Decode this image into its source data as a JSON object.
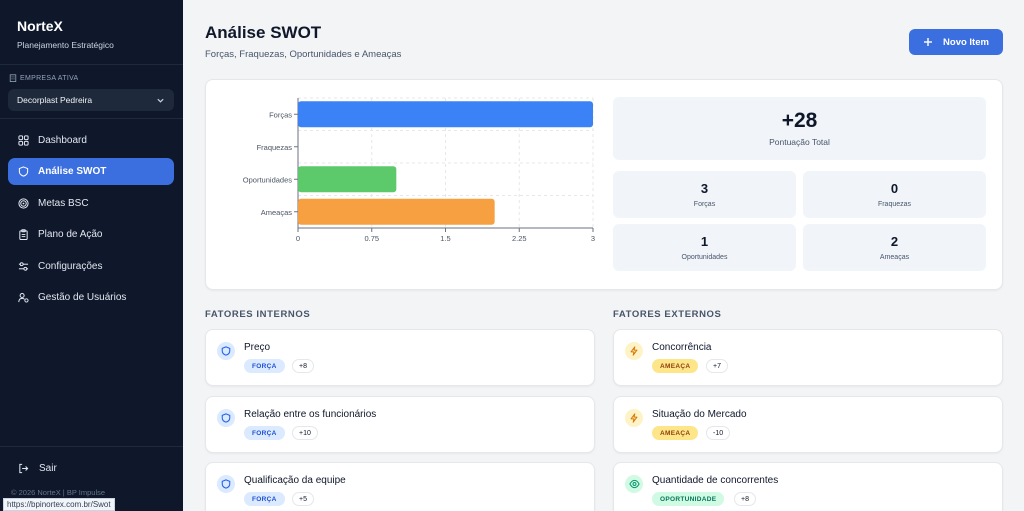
{
  "sidebar": {
    "brand": "NorteX",
    "brand_subtitle": "Planejamento Estratégico",
    "company_label": "EMPRESA ATIVA",
    "company_selected": "Decorplast Pedreira",
    "nav": [
      {
        "label": "Dashboard",
        "icon": "grid-icon"
      },
      {
        "label": "Análise SWOT",
        "icon": "shield-icon",
        "active": true
      },
      {
        "label": "Metas BSC",
        "icon": "target-icon"
      },
      {
        "label": "Plano de Ação",
        "icon": "clipboard-icon"
      },
      {
        "label": "Configurações",
        "icon": "sliders-icon"
      },
      {
        "label": "Gestão de Usuários",
        "icon": "users-gear-icon"
      }
    ],
    "logout_label": "Sair",
    "copyright": "© 2026 NorteX | BP Impulse"
  },
  "status_url": "https://bpinortex.com.br/Swot",
  "header": {
    "title": "Análise SWOT",
    "subtitle": "Forças, Fraquezas, Oportunidades e Ameaças",
    "new_button_label": "Novo Item"
  },
  "chart_data": {
    "type": "bar",
    "orientation": "horizontal",
    "categories": [
      "Forças",
      "Fraquezas",
      "Oportunidades",
      "Ameaças"
    ],
    "values": [
      3,
      0,
      1,
      2
    ],
    "colors": [
      "#3b82f6",
      "#ef4444",
      "#5cc96b",
      "#f6a041"
    ],
    "xlim": [
      0,
      3
    ],
    "xticks": [
      "0",
      "0.75",
      "1.5",
      "2.25",
      "3"
    ],
    "grid": true
  },
  "stats": {
    "total_value": "+28",
    "total_label": "Pontuação Total",
    "items": [
      {
        "value": "3",
        "label": "Forças"
      },
      {
        "value": "0",
        "label": "Fraquezas"
      },
      {
        "value": "1",
        "label": "Oportunidades"
      },
      {
        "value": "2",
        "label": "Ameaças"
      }
    ]
  },
  "internal": {
    "title": "FATORES INTERNOS",
    "items": [
      {
        "name": "Preço",
        "badge": "FORÇA",
        "score": "+8"
      },
      {
        "name": "Relação entre os funcionários",
        "badge": "FORÇA",
        "score": "+10"
      },
      {
        "name": "Qualificação da equipe",
        "badge": "FORÇA",
        "score": "+5"
      }
    ]
  },
  "external": {
    "title": "FATORES EXTERNOS",
    "items": [
      {
        "name": "Concorrência",
        "badge": "AMEAÇA",
        "score": "+7"
      },
      {
        "name": "Situação do Mercado",
        "badge": "AMEAÇA",
        "score": "-10"
      },
      {
        "name": "Quantidade de concorrentes",
        "badge": "OPORTUNIDADE",
        "score": "+8"
      }
    ]
  },
  "colors": {
    "accent": "#3b6fe0",
    "sidebar_bg": "#0f172a"
  }
}
